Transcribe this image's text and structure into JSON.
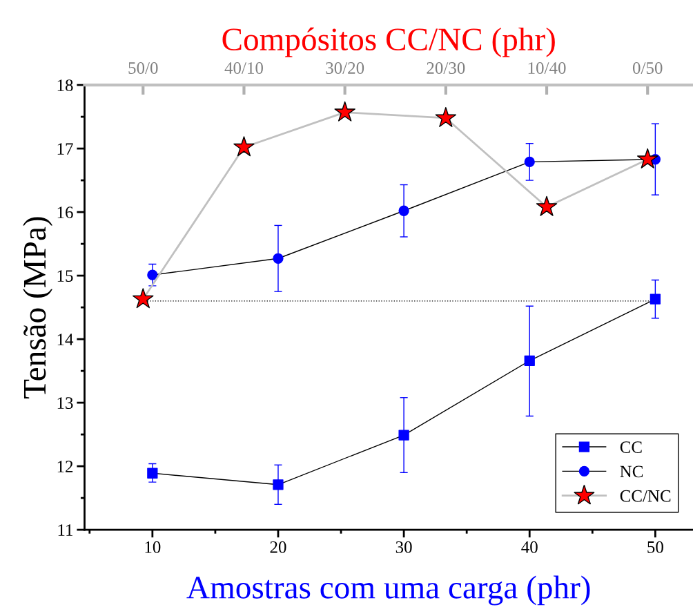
{
  "chart_data": [
    {
      "type": "line",
      "xlabel": "Amostras com uma carga (phr)",
      "ylabel": "Tensão (MPa)",
      "xlim": [
        4.6,
        53
      ],
      "xticks": [
        10,
        20,
        30,
        40,
        50
      ],
      "ylim": [
        11,
        18
      ],
      "yticks": [
        11,
        12,
        13,
        14,
        15,
        16,
        17,
        18
      ],
      "legend": "bottom right",
      "grid": false,
      "series": [
        {
          "name": "CC",
          "color": "#000000",
          "colors": [
            "#0000ff",
            "#0000ff",
            "#0000ff",
            "#0000ff",
            "#0000ff"
          ],
          "marker": "square",
          "x": [
            10,
            20,
            30,
            40,
            50
          ],
          "values": [
            11.89,
            11.71,
            12.49,
            13.66,
            14.63
          ],
          "errors": [
            [
              11.75,
              12.04
            ],
            [
              11.4,
              12.02
            ],
            [
              11.9,
              13.08
            ],
            [
              12.79,
              14.52
            ],
            [
              14.33,
              14.93
            ]
          ]
        },
        {
          "name": "NC",
          "color": "#000000",
          "colors": [
            "#0000ff",
            "#0000ff",
            "#0000ff",
            "#0000ff",
            "#0000ff"
          ],
          "marker": "circle",
          "x": [
            10,
            20,
            30,
            40,
            50
          ],
          "values": [
            15.01,
            15.27,
            16.02,
            16.79,
            16.83
          ],
          "errors": [
            [
              14.84,
              15.18
            ],
            [
              14.75,
              15.79
            ],
            [
              15.61,
              16.43
            ],
            [
              16.5,
              17.08
            ],
            [
              16.27,
              17.39
            ]
          ]
        },
        {
          "color": "#000000",
          "marker": "none",
          "line_style": "dotted",
          "x": [
            9.2,
            49.8
          ],
          "values": [
            14.6,
            14.6
          ]
        }
      ]
    },
    {
      "type": "line",
      "xlabel": "Compósitos CC/NC (phr)",
      "categories": [
        "50/0",
        "40/10",
        "30/20",
        "20/30",
        "10/40",
        "0/50"
      ],
      "ylim": [
        11,
        18
      ],
      "tick_labels": "x",
      "legend": "bottom right",
      "grid": false,
      "series": [
        {
          "name": "CC/NC",
          "color": "#c0c0c0",
          "colors": [
            "#ff0000",
            "#ff0000",
            "#ff0000",
            "#ff0000",
            "#ff0000",
            "#ff0000"
          ],
          "marker": "star",
          "values": [
            14.63,
            17.02,
            17.57,
            17.48,
            16.08,
            16.83
          ]
        }
      ]
    }
  ]
}
